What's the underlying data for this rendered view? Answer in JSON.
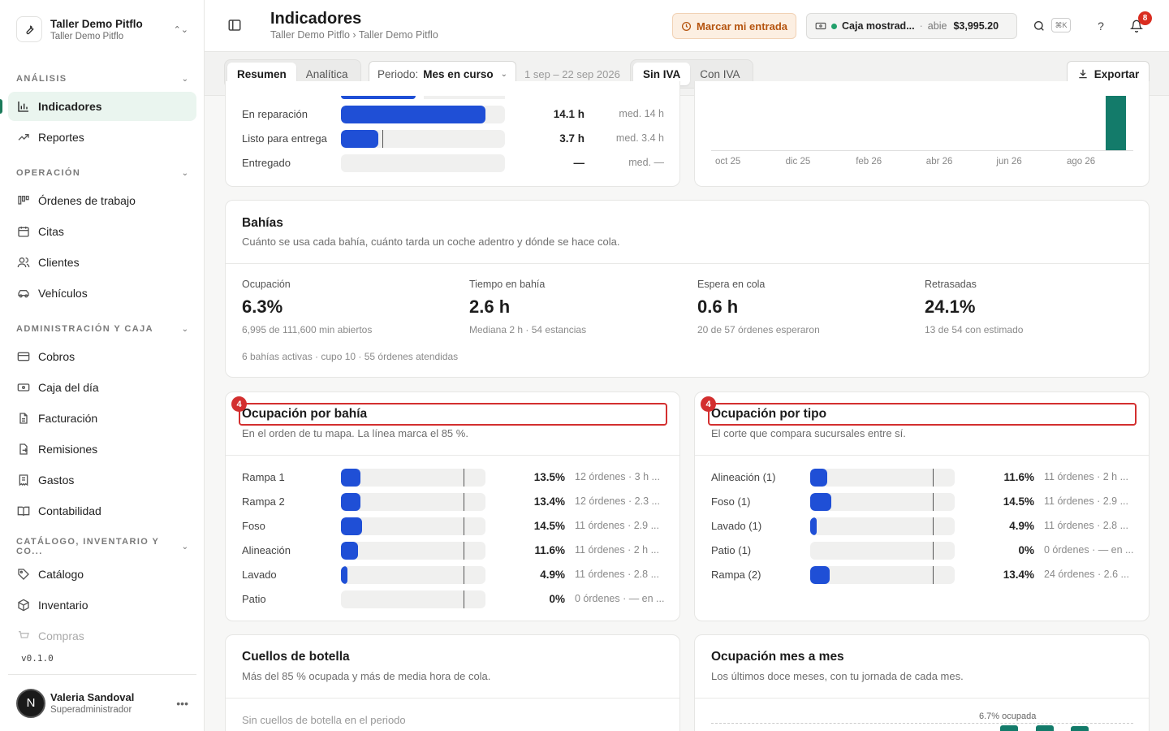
{
  "workspace": {
    "name": "Taller Demo Pitflo",
    "subtitle": "Taller Demo Pitflo"
  },
  "sidebar": {
    "sections": [
      {
        "label": "ANÁLISIS"
      },
      {
        "label": "OPERACIÓN"
      },
      {
        "label": "ADMINISTRACIÓN Y CAJA"
      },
      {
        "label": "CATÁLOGO, INVENTARIO Y CO..."
      }
    ],
    "items": [
      {
        "label": "Indicadores"
      },
      {
        "label": "Reportes"
      },
      {
        "label": "Órdenes de trabajo"
      },
      {
        "label": "Citas"
      },
      {
        "label": "Clientes"
      },
      {
        "label": "Vehículos"
      },
      {
        "label": "Cobros"
      },
      {
        "label": "Caja del día"
      },
      {
        "label": "Facturación"
      },
      {
        "label": "Remisiones"
      },
      {
        "label": "Gastos"
      },
      {
        "label": "Contabilidad"
      },
      {
        "label": "Catálogo"
      },
      {
        "label": "Inventario"
      },
      {
        "label": "Compras"
      }
    ],
    "version": "v0.1.0",
    "user": {
      "initial": "N",
      "name": "Valeria Sandoval",
      "role": "Superadministrador"
    }
  },
  "header": {
    "title": "Indicadores",
    "breadcrumb": "Taller Demo Pitflo › Taller Demo Pitflo",
    "clock_in_label": "Marcar mi entrada",
    "cash": {
      "name": "Caja mostrad...",
      "status": "abie",
      "amount": "$3,995.20"
    },
    "shortcut": "⌘K",
    "help": "?",
    "notifications_count": "8"
  },
  "toolbar": {
    "view_tabs": [
      "Resumen",
      "Analítica"
    ],
    "period_label": "Periodo:",
    "period_value": "Mes en curso",
    "date_range": "1 sep – 22 sep 2026",
    "tax_tabs": [
      "Sin IVA",
      "Con IVA"
    ],
    "export_label": "Exportar"
  },
  "status_card": {
    "rows": [
      {
        "label": "En reparación",
        "value": "14.1 h",
        "meta": "med. 14 h",
        "fill": 0.88,
        "mark": null
      },
      {
        "label": "Listo para entrega",
        "value": "3.7 h",
        "meta": "med. 3.4 h",
        "fill": 0.23,
        "mark": 0.25
      },
      {
        "label": "Entregado",
        "value": "—",
        "meta": "med. —",
        "fill": 0,
        "mark": null
      }
    ]
  },
  "trend_card": {
    "x_labels": [
      "oct 25",
      "dic 25",
      "feb 26",
      "abr 26",
      "jun 26",
      "ago 26"
    ],
    "color": "#137b6a"
  },
  "bays": {
    "title": "Bahías",
    "subtitle": "Cuánto se usa cada bahía, cuánto tarda un coche adentro y dónde se hace cola.",
    "kpis": [
      {
        "label": "Ocupación",
        "value": "6.3%",
        "sub": "6,995 de 111,600 min abiertos"
      },
      {
        "label": "Tiempo en bahía",
        "value": "2.6 h",
        "sub": "Mediana 2 h · 54 estancias"
      },
      {
        "label": "Espera en cola",
        "value": "0.6 h",
        "sub": "20 de 57 órdenes esperaron"
      },
      {
        "label": "Retrasadas",
        "value": "24.1%",
        "sub": "13 de 54 con estimado"
      }
    ],
    "footer": "6 bahías activas · cupo 10 · 55 órdenes atendidas"
  },
  "occupancy_by_bay": {
    "badge": "4",
    "title": "Ocupación por bahía",
    "subtitle": "En el orden de tu mapa. La línea marca el 85 %.",
    "rows": [
      {
        "label": "Rampa 1",
        "value": "13.5%",
        "meta": "12 órdenes · 3 h ...",
        "fill": 0.135
      },
      {
        "label": "Rampa 2",
        "value": "13.4%",
        "meta": "12 órdenes · 2.3 ...",
        "fill": 0.134
      },
      {
        "label": "Foso",
        "value": "14.5%",
        "meta": "11 órdenes · 2.9 ...",
        "fill": 0.145
      },
      {
        "label": "Alineación",
        "value": "11.6%",
        "meta": "11 órdenes · 2 h ...",
        "fill": 0.116
      },
      {
        "label": "Lavado",
        "value": "4.9%",
        "meta": "11 órdenes · 2.8 ...",
        "fill": 0.049
      },
      {
        "label": "Patio",
        "value": "0%",
        "meta": "0 órdenes · — en ...",
        "fill": 0
      }
    ],
    "threshold": 0.85
  },
  "occupancy_by_type": {
    "badge": "4",
    "title": "Ocupación por tipo",
    "subtitle": "El corte que compara sucursales entre sí.",
    "rows": [
      {
        "label": "Alineación (1)",
        "value": "11.6%",
        "meta": "11 órdenes · 2 h ...",
        "fill": 0.116
      },
      {
        "label": "Foso (1)",
        "value": "14.5%",
        "meta": "11 órdenes · 2.9 ...",
        "fill": 0.145
      },
      {
        "label": "Lavado (1)",
        "value": "4.9%",
        "meta": "11 órdenes · 2.8 ...",
        "fill": 0.049
      },
      {
        "label": "Patio (1)",
        "value": "0%",
        "meta": "0 órdenes · — en ...",
        "fill": 0
      },
      {
        "label": "Rampa (2)",
        "value": "13.4%",
        "meta": "24 órdenes · 2.6 ...",
        "fill": 0.134
      }
    ],
    "threshold": 0.85
  },
  "bottlenecks": {
    "title": "Cuellos de botella",
    "subtitle": "Más del 85 % ocupada y más de media hora de cola.",
    "empty": "Sin cuellos de botella en el periodo"
  },
  "monthly": {
    "title": "Ocupación mes a mes",
    "subtitle": "Los últimos doce meses, con tu jornada de cada mes.",
    "annotation": "6.7% ocupada"
  },
  "colors": {
    "accent": "#1b7a5a",
    "bar": "#1f4fd6",
    "highlight": "#d32f2f",
    "teal": "#137b6a"
  }
}
